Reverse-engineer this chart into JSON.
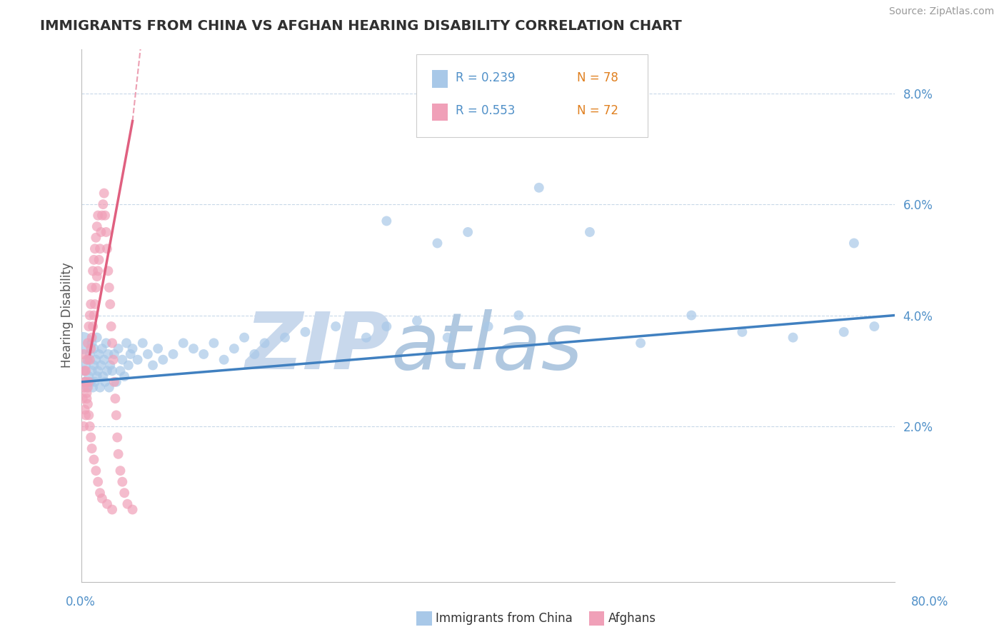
{
  "title": "IMMIGRANTS FROM CHINA VS AFGHAN HEARING DISABILITY CORRELATION CHART",
  "source": "Source: ZipAtlas.com",
  "ylabel": "Hearing Disability",
  "y_ticks": [
    0.02,
    0.04,
    0.06,
    0.08
  ],
  "y_tick_labels": [
    "2.0%",
    "4.0%",
    "6.0%",
    "8.0%"
  ],
  "x_min": 0.0,
  "x_max": 0.8,
  "y_min": -0.008,
  "y_max": 0.088,
  "legend_R1": "R = 0.239",
  "legend_N1": "N = 78",
  "legend_R2": "R = 0.553",
  "legend_N2": "N = 72",
  "color_china": "#a8c8e8",
  "color_afghan": "#f0a0b8",
  "color_china_line": "#4080c0",
  "color_afghan_line": "#e06080",
  "watermark_zip": "ZIP",
  "watermark_atlas": "atlas",
  "watermark_color": "#d8e8f4",
  "background_color": "#ffffff",
  "grid_color": "#c8d8e8",
  "title_color": "#303030",
  "axis_label_color": "#5090c8",
  "china_x": [
    0.002,
    0.003,
    0.004,
    0.005,
    0.006,
    0.007,
    0.008,
    0.009,
    0.01,
    0.01,
    0.011,
    0.012,
    0.012,
    0.013,
    0.014,
    0.015,
    0.015,
    0.016,
    0.017,
    0.018,
    0.019,
    0.02,
    0.021,
    0.022,
    0.023,
    0.024,
    0.025,
    0.026,
    0.027,
    0.028,
    0.03,
    0.032,
    0.034,
    0.036,
    0.038,
    0.04,
    0.042,
    0.044,
    0.046,
    0.048,
    0.05,
    0.055,
    0.06,
    0.065,
    0.07,
    0.075,
    0.08,
    0.09,
    0.1,
    0.11,
    0.12,
    0.13,
    0.14,
    0.15,
    0.16,
    0.17,
    0.18,
    0.2,
    0.22,
    0.25,
    0.28,
    0.3,
    0.33,
    0.36,
    0.4,
    0.43,
    0.3,
    0.35,
    0.38,
    0.45,
    0.5,
    0.55,
    0.6,
    0.65,
    0.7,
    0.75,
    0.78,
    0.76
  ],
  "china_y": [
    0.03,
    0.028,
    0.031,
    0.027,
    0.032,
    0.029,
    0.033,
    0.028,
    0.03,
    0.035,
    0.027,
    0.031,
    0.034,
    0.028,
    0.032,
    0.029,
    0.036,
    0.03,
    0.033,
    0.027,
    0.031,
    0.034,
    0.029,
    0.032,
    0.028,
    0.035,
    0.03,
    0.033,
    0.027,
    0.031,
    0.03,
    0.033,
    0.028,
    0.034,
    0.03,
    0.032,
    0.029,
    0.035,
    0.031,
    0.033,
    0.034,
    0.032,
    0.035,
    0.033,
    0.031,
    0.034,
    0.032,
    0.033,
    0.035,
    0.034,
    0.033,
    0.035,
    0.032,
    0.034,
    0.036,
    0.033,
    0.035,
    0.036,
    0.037,
    0.038,
    0.036,
    0.038,
    0.039,
    0.036,
    0.038,
    0.04,
    0.057,
    0.053,
    0.055,
    0.063,
    0.055,
    0.035,
    0.04,
    0.037,
    0.036,
    0.037,
    0.038,
    0.053
  ],
  "afghan_x": [
    0.001,
    0.002,
    0.002,
    0.003,
    0.003,
    0.004,
    0.004,
    0.005,
    0.005,
    0.006,
    0.006,
    0.007,
    0.007,
    0.008,
    0.008,
    0.009,
    0.009,
    0.01,
    0.01,
    0.011,
    0.011,
    0.012,
    0.012,
    0.013,
    0.013,
    0.014,
    0.014,
    0.015,
    0.015,
    0.016,
    0.016,
    0.017,
    0.018,
    0.019,
    0.02,
    0.021,
    0.022,
    0.023,
    0.024,
    0.025,
    0.026,
    0.027,
    0.028,
    0.029,
    0.03,
    0.031,
    0.032,
    0.033,
    0.034,
    0.035,
    0.036,
    0.038,
    0.04,
    0.042,
    0.045,
    0.05,
    0.002,
    0.003,
    0.004,
    0.005,
    0.006,
    0.007,
    0.008,
    0.009,
    0.01,
    0.012,
    0.014,
    0.016,
    0.018,
    0.02,
    0.025,
    0.03
  ],
  "afghan_y": [
    0.025,
    0.02,
    0.027,
    0.023,
    0.028,
    0.022,
    0.03,
    0.025,
    0.032,
    0.027,
    0.035,
    0.028,
    0.038,
    0.032,
    0.04,
    0.034,
    0.042,
    0.036,
    0.045,
    0.038,
    0.048,
    0.04,
    0.05,
    0.042,
    0.052,
    0.045,
    0.054,
    0.047,
    0.056,
    0.048,
    0.058,
    0.05,
    0.052,
    0.055,
    0.058,
    0.06,
    0.062,
    0.058,
    0.055,
    0.052,
    0.048,
    0.045,
    0.042,
    0.038,
    0.035,
    0.032,
    0.028,
    0.025,
    0.022,
    0.018,
    0.015,
    0.012,
    0.01,
    0.008,
    0.006,
    0.005,
    0.033,
    0.03,
    0.028,
    0.026,
    0.024,
    0.022,
    0.02,
    0.018,
    0.016,
    0.014,
    0.012,
    0.01,
    0.008,
    0.007,
    0.006,
    0.005
  ],
  "china_line_x": [
    0.0,
    0.8
  ],
  "china_line_y": [
    0.028,
    0.04
  ],
  "afghan_line_x": [
    0.0,
    0.05
  ],
  "afghan_line_y": [
    0.025,
    0.075
  ]
}
